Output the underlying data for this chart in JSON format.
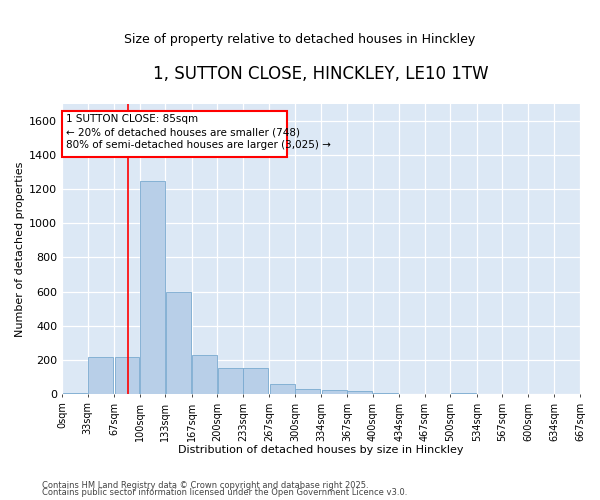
{
  "title": "1, SUTTON CLOSE, HINCKLEY, LE10 1TW",
  "subtitle": "Size of property relative to detached houses in Hinckley",
  "xlabel": "Distribution of detached houses by size in Hinckley",
  "ylabel": "Number of detached properties",
  "bar_color": "#b8cfe8",
  "bar_edge_color": "#7aaad0",
  "axes_facecolor": "#dce8f5",
  "fig_facecolor": "#ffffff",
  "grid_color": "#ffffff",
  "bins": [
    0,
    33,
    67,
    100,
    133,
    167,
    200,
    233,
    267,
    300,
    334,
    367,
    400,
    434,
    467,
    500,
    534,
    567,
    600,
    634,
    667
  ],
  "bin_labels": [
    "0sqm",
    "33sqm",
    "67sqm",
    "100sqm",
    "133sqm",
    "167sqm",
    "200sqm",
    "233sqm",
    "267sqm",
    "300sqm",
    "334sqm",
    "367sqm",
    "400sqm",
    "434sqm",
    "467sqm",
    "500sqm",
    "534sqm",
    "567sqm",
    "600sqm",
    "634sqm",
    "667sqm"
  ],
  "values": [
    5,
    215,
    215,
    1250,
    600,
    230,
    150,
    150,
    60,
    30,
    20,
    15,
    5,
    0,
    0,
    5,
    0,
    0,
    0,
    0
  ],
  "red_line_x": 85,
  "ylim": [
    0,
    1700
  ],
  "yticks": [
    0,
    200,
    400,
    600,
    800,
    1000,
    1200,
    1400,
    1600
  ],
  "ann_text_line1": "1 SUTTON CLOSE: 85sqm",
  "ann_text_line2": "← 20% of detached houses are smaller (748)",
  "ann_text_line3": "80% of semi-detached houses are larger (3,025) →",
  "footer_line1": "Contains HM Land Registry data © Crown copyright and database right 2025.",
  "footer_line2": "Contains public sector information licensed under the Open Government Licence v3.0."
}
